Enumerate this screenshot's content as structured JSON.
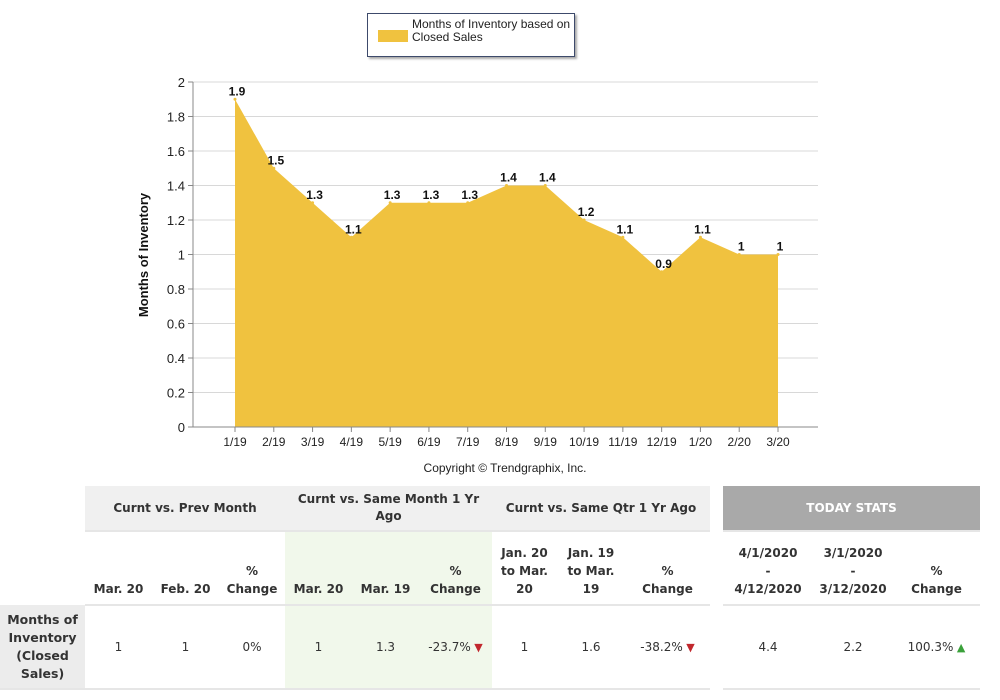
{
  "chart_data": {
    "type": "area",
    "title": "",
    "legend": [
      "Months of Inventory based on Closed Sales"
    ],
    "legend_placement": "top-center",
    "ylabel": "Months of Inventory",
    "xlabel": "",
    "ylim": [
      0,
      2
    ],
    "yticks": [
      "0",
      "0.2",
      "0.4",
      "0.6",
      "0.8",
      "1",
      "1.2",
      "1.4",
      "1.6",
      "1.8",
      "2"
    ],
    "categories": [
      "1/19",
      "2/19",
      "3/19",
      "4/19",
      "5/19",
      "6/19",
      "7/19",
      "8/19",
      "9/19",
      "10/19",
      "11/19",
      "12/19",
      "1/20",
      "2/20",
      "3/20"
    ],
    "values": [
      1.9,
      1.5,
      1.3,
      1.1,
      1.3,
      1.3,
      1.3,
      1.4,
      1.4,
      1.2,
      1.1,
      0.9,
      1.1,
      1,
      1
    ],
    "labels": [
      "1.9",
      "1.5",
      "1.3",
      "1.1",
      "1.3",
      "1.3",
      "1.3",
      "1.4",
      "1.4",
      "1.2",
      "1.1",
      "0.9",
      "1.1",
      "1",
      "1"
    ],
    "color": "#f0c23f",
    "grid": true,
    "copyright": "Copyright © Trendgraphix, Inc."
  },
  "table": {
    "groups": [
      "Curnt vs. Prev Month",
      "Curnt vs. Same Month 1 Yr Ago",
      "Curnt vs. Same Qtr 1 Yr Ago",
      "TODAY STATS"
    ],
    "columns": [
      "Mar. 20",
      "Feb. 20",
      "% Change",
      "Mar. 20",
      "Mar. 19",
      "% Change",
      "Jan. 20 to Mar. 20",
      "Jan. 19 to Mar. 19",
      "% Change",
      "4/1/2020 - 4/12/2020",
      "3/1/2020 - 3/12/2020",
      "% Change"
    ],
    "row_label": "Months of Inventory (Closed Sales)",
    "values": [
      "1",
      "1",
      "0%",
      "1",
      "1.3",
      "-23.7%",
      "1",
      "1.6",
      "-38.2%",
      "4.4",
      "2.2",
      "100.3%"
    ],
    "trend_down_color": "#c1272d",
    "trend_up_color": "#3aa13a"
  }
}
